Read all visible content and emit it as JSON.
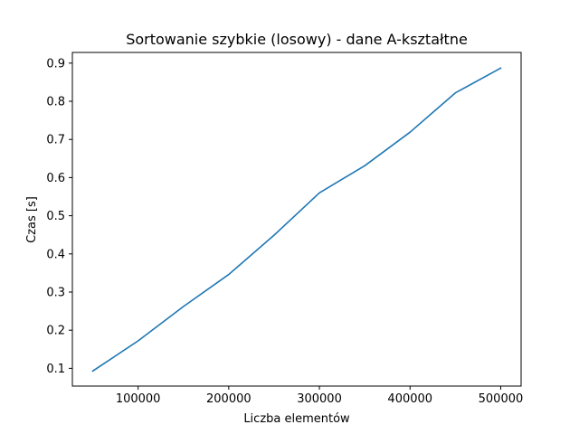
{
  "chart_data": {
    "type": "line",
    "title": "Sortowanie szybkie (losowy) - dane A-kształtne",
    "xlabel": "Liczba elementów",
    "ylabel": "Czas [s]",
    "grid": false,
    "xlim": [
      27500,
      522500
    ],
    "ylim": [
      0.0535,
      0.928
    ],
    "xticks": [
      100000,
      200000,
      300000,
      400000,
      500000
    ],
    "xtick_labels": [
      "100000",
      "200000",
      "300000",
      "400000",
      "500000"
    ],
    "yticks": [
      0.1,
      0.2,
      0.3,
      0.4,
      0.5,
      0.6,
      0.7,
      0.8,
      0.9
    ],
    "ytick_labels": [
      "0.1",
      "0.2",
      "0.3",
      "0.4",
      "0.5",
      "0.6",
      "0.7",
      "0.8",
      "0.9"
    ],
    "series": [
      {
        "color": "#1f77b4",
        "x": [
          50000,
          100000,
          150000,
          200000,
          250000,
          300000,
          350000,
          400000,
          450000,
          500000
        ],
        "y": [
          0.093,
          0.172,
          0.262,
          0.346,
          0.449,
          0.56,
          0.631,
          0.719,
          0.822,
          0.887
        ]
      }
    ]
  }
}
